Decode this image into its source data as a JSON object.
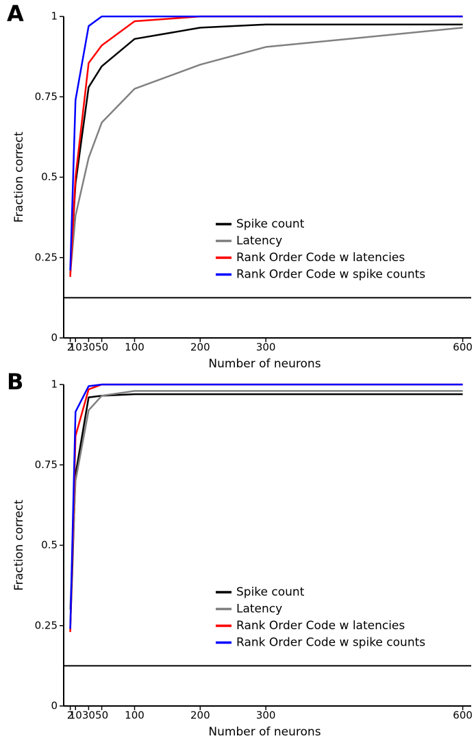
{
  "chart_data": [
    {
      "type": "line",
      "panel_label": "A",
      "xlabel": "Number of neurons",
      "ylabel": "Fraction correct",
      "x": [
        2,
        10,
        30,
        50,
        100,
        200,
        300,
        600
      ],
      "series": [
        {
          "name": "Spike count",
          "color": "#000000",
          "values": [
            0.2,
            0.48,
            0.78,
            0.845,
            0.93,
            0.965,
            0.975,
            0.975
          ]
        },
        {
          "name": "Latency",
          "color": "#808080",
          "values": [
            0.2,
            0.38,
            0.56,
            0.67,
            0.775,
            0.85,
            0.905,
            0.965
          ]
        },
        {
          "name": "Rank Order Code w latencies",
          "color": "#ff0000",
          "values": [
            0.19,
            0.5,
            0.855,
            0.91,
            0.985,
            1,
            1,
            1
          ]
        },
        {
          "name": "Rank Order Code w spike counts",
          "color": "#0000ff",
          "values": [
            0.21,
            0.74,
            0.97,
            1,
            1,
            1,
            1,
            1
          ]
        }
      ],
      "hline": 0.125,
      "xlim": [
        -8,
        615
      ],
      "ylim": [
        0,
        1
      ],
      "xticks": [
        2,
        10,
        30,
        50,
        100,
        200,
        300,
        600
      ],
      "yticks": [
        0,
        0.25,
        0.5,
        0.75,
        1
      ],
      "legend": "lower right"
    },
    {
      "type": "line",
      "panel_label": "B",
      "xlabel": "Number of neurons",
      "ylabel": "Fraction correct",
      "x": [
        2,
        10,
        30,
        50,
        100,
        200,
        300,
        600
      ],
      "series": [
        {
          "name": "Spike count",
          "color": "#000000",
          "values": [
            0.24,
            0.72,
            0.96,
            0.965,
            0.97,
            0.97,
            0.97,
            0.97
          ]
        },
        {
          "name": "Latency",
          "color": "#808080",
          "values": [
            0.3,
            0.7,
            0.92,
            0.965,
            0.98,
            0.98,
            0.98,
            0.98
          ]
        },
        {
          "name": "Rank Order Code w latencies",
          "color": "#ff0000",
          "values": [
            0.23,
            0.84,
            0.985,
            1,
            1,
            1,
            1,
            1
          ]
        },
        {
          "name": "Rank Order Code w spike counts",
          "color": "#0000ff",
          "values": [
            0.24,
            0.915,
            0.995,
            1,
            1,
            1,
            1,
            1
          ]
        }
      ],
      "hline": 0.125,
      "xlim": [
        -8,
        615
      ],
      "ylim": [
        0,
        1
      ],
      "xticks": [
        2,
        10,
        30,
        50,
        100,
        200,
        300,
        600
      ],
      "yticks": [
        0,
        0.25,
        0.5,
        0.75,
        1
      ],
      "legend": "lower right"
    }
  ]
}
